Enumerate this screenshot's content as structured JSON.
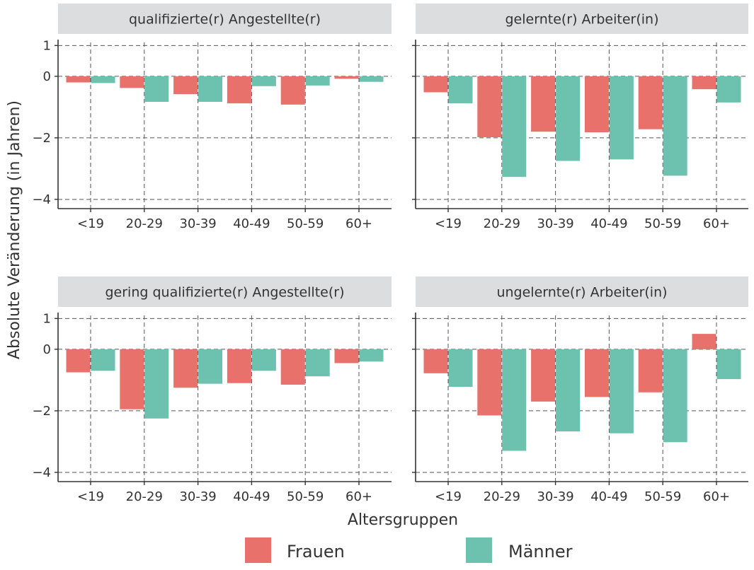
{
  "chart_data": {
    "type": "bar",
    "ylabel": "Absolute Veränderung (in Jahren)",
    "xlabel": "Altersgruppen",
    "categories": [
      "<19",
      "20-29",
      "30-39",
      "40-49",
      "50-59",
      "60+"
    ],
    "ylim": [
      -4.3,
      1.1
    ],
    "yticks": [
      1,
      0,
      -2,
      -4
    ],
    "ytick_labels": [
      "1",
      "0",
      "−2",
      "−4"
    ],
    "grid": true,
    "legend": {
      "position": "bottom"
    },
    "colors": {
      "Frauen": "#E8716C",
      "Männer": "#6CC2AE"
    },
    "panels": [
      {
        "title": "qualifizierte(r) Angestellte(r)",
        "series": [
          {
            "name": "Frauen",
            "values": [
              -0.2,
              -0.38,
              -0.58,
              -0.88,
              -0.92,
              -0.08
            ]
          },
          {
            "name": "Männer",
            "values": [
              -0.22,
              -0.83,
              -0.83,
              -0.32,
              -0.3,
              -0.18
            ]
          }
        ]
      },
      {
        "title": "gelernte(r) Arbeiter(in)",
        "series": [
          {
            "name": "Frauen",
            "values": [
              -0.52,
              -1.98,
              -1.8,
              -1.82,
              -1.72,
              -0.42
            ]
          },
          {
            "name": "Männer",
            "values": [
              -0.88,
              -3.27,
              -2.75,
              -2.7,
              -3.23,
              -0.85
            ]
          }
        ]
      },
      {
        "title": "gering qualifizierte(r) Angestellte(r)",
        "series": [
          {
            "name": "Frauen",
            "values": [
              -0.75,
              -1.95,
              -1.25,
              -1.1,
              -1.15,
              -0.45
            ]
          },
          {
            "name": "Männer",
            "values": [
              -0.7,
              -2.25,
              -1.12,
              -0.7,
              -0.88,
              -0.4
            ]
          }
        ]
      },
      {
        "title": "ungelernte(r) Arbeiter(in)",
        "series": [
          {
            "name": "Frauen",
            "values": [
              -0.78,
              -2.15,
              -1.7,
              -1.55,
              -1.4,
              0.5
            ]
          },
          {
            "name": "Männer",
            "values": [
              -1.22,
              -3.3,
              -2.67,
              -2.73,
              -3.02,
              -0.97
            ]
          }
        ]
      }
    ]
  }
}
